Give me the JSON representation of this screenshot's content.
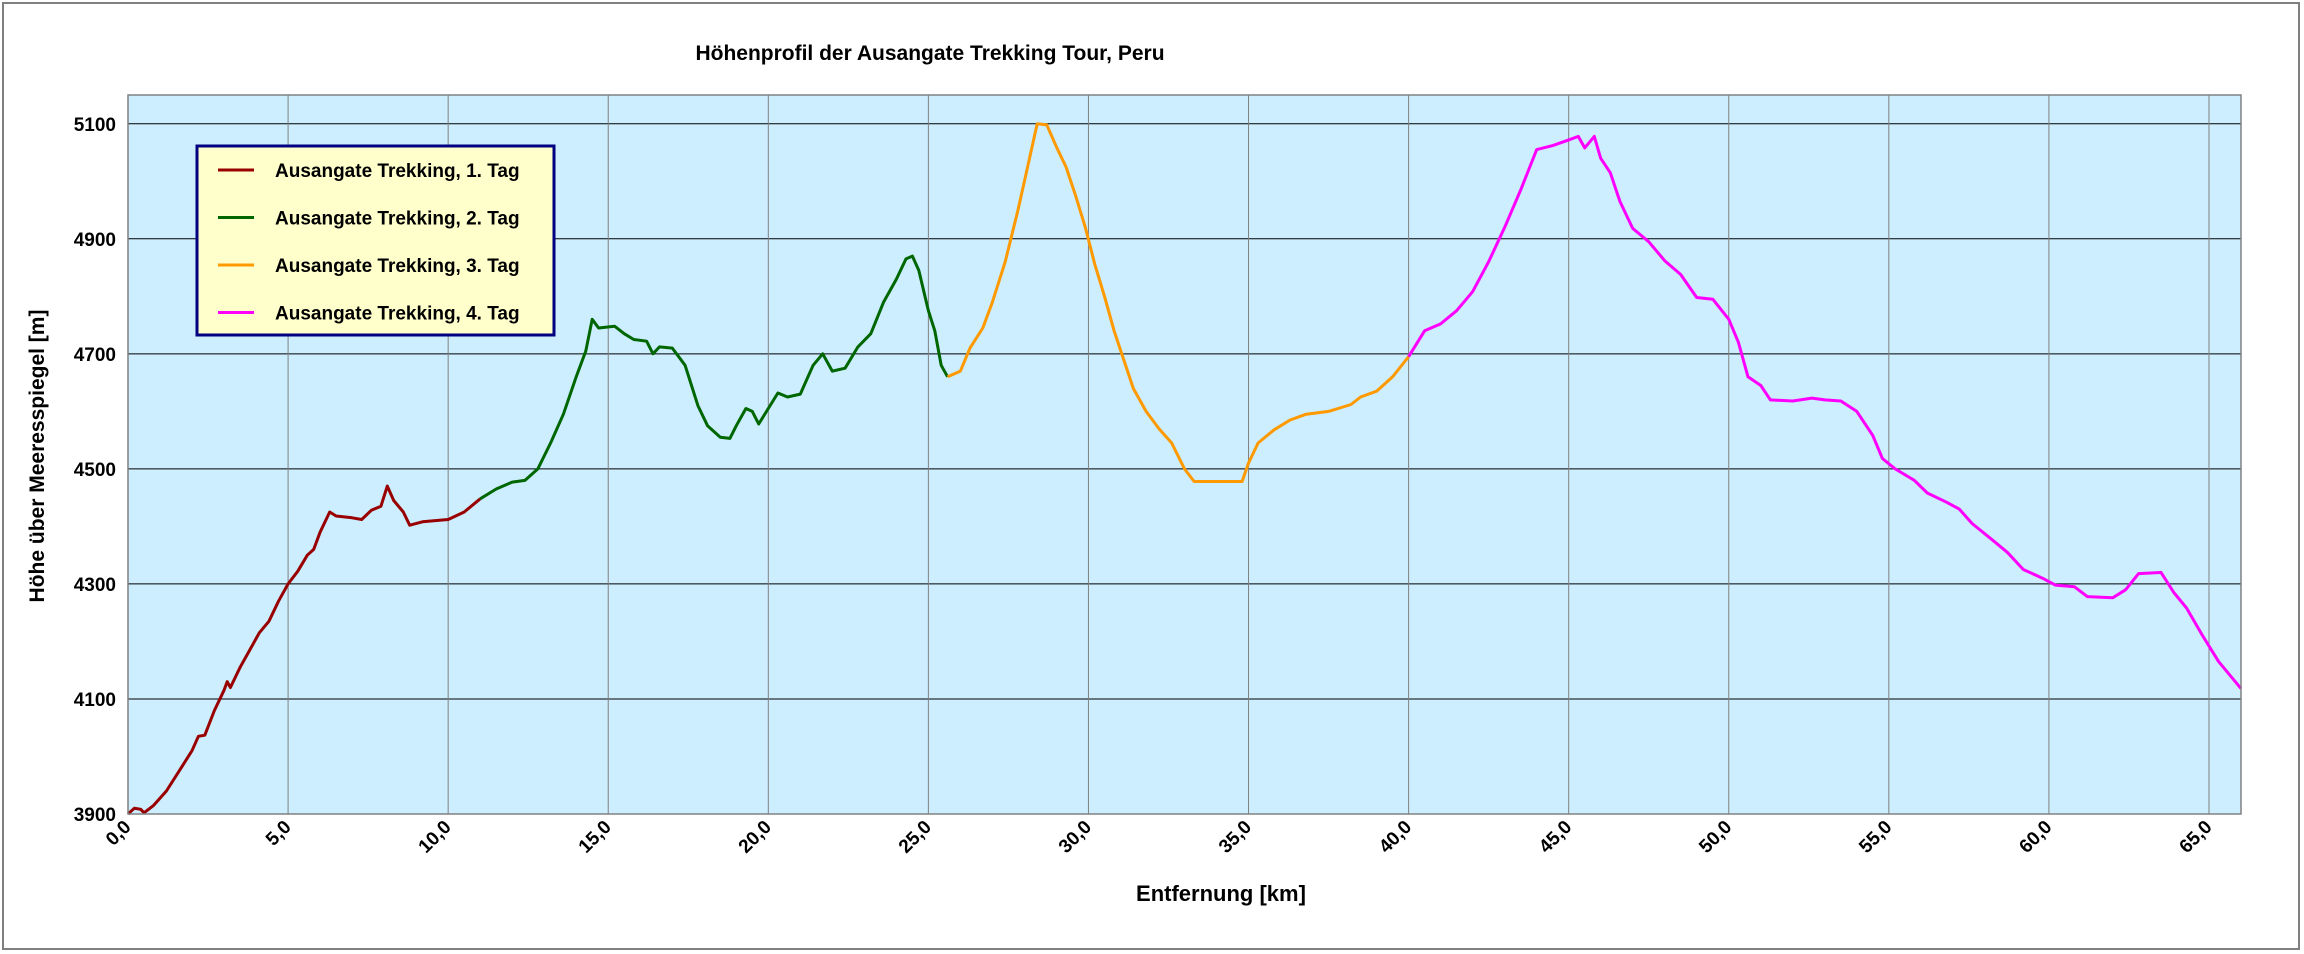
{
  "chart_data": {
    "type": "line",
    "title": "Höhenprofil der Ausangate Trekking Tour, Peru",
    "xlabel": "Entfernung [km]",
    "ylabel": "Höhe über Meeresspiegel [m]",
    "xlim": [
      0,
      66
    ],
    "ylim": [
      3900,
      5150
    ],
    "x_ticks": [
      0,
      5,
      10,
      15,
      20,
      25,
      30,
      35,
      40,
      45,
      50,
      55,
      60,
      65
    ],
    "x_tick_labels": [
      "0,0",
      "5,0",
      "10,0",
      "15,0",
      "20,0",
      "25,0",
      "30,0",
      "35,0",
      "40,0",
      "45,0",
      "50,0",
      "55,0",
      "60,0",
      "65,0"
    ],
    "y_ticks": [
      3900,
      4100,
      4300,
      4500,
      4700,
      4900,
      5100
    ],
    "y_tick_labels": [
      "3900",
      "4100",
      "4300",
      "4500",
      "4700",
      "4900",
      "5100"
    ],
    "grid": true,
    "plot_background": "#cceeff",
    "legend_position": "top-left",
    "series": [
      {
        "name": "Ausangate Trekking, 1. Tag",
        "color": "#990000",
        "points": [
          [
            0,
            3900
          ],
          [
            0.2,
            3910
          ],
          [
            0.4,
            3908
          ],
          [
            0.5,
            3902
          ],
          [
            0.8,
            3915
          ],
          [
            1.2,
            3940
          ],
          [
            1.6,
            3975
          ],
          [
            2.0,
            4010
          ],
          [
            2.2,
            4035
          ],
          [
            2.4,
            4037
          ],
          [
            2.7,
            4080
          ],
          [
            3.0,
            4115
          ],
          [
            3.1,
            4130
          ],
          [
            3.2,
            4120
          ],
          [
            3.5,
            4155
          ],
          [
            3.8,
            4185
          ],
          [
            4.1,
            4215
          ],
          [
            4.4,
            4235
          ],
          [
            4.7,
            4270
          ],
          [
            5.0,
            4300
          ],
          [
            5.3,
            4322
          ],
          [
            5.6,
            4350
          ],
          [
            5.8,
            4360
          ],
          [
            6.0,
            4390
          ],
          [
            6.3,
            4425
          ],
          [
            6.5,
            4418
          ],
          [
            7.0,
            4415
          ],
          [
            7.3,
            4412
          ],
          [
            7.6,
            4428
          ],
          [
            7.9,
            4435
          ],
          [
            8.1,
            4470
          ],
          [
            8.3,
            4445
          ],
          [
            8.6,
            4425
          ],
          [
            8.8,
            4402
          ],
          [
            9.2,
            4408
          ],
          [
            9.6,
            4410
          ],
          [
            10.0,
            4412
          ],
          [
            10.5,
            4425
          ],
          [
            11.0,
            4448
          ]
        ]
      },
      {
        "name": "Ausangate Trekking, 2. Tag",
        "color": "#006600",
        "points": [
          [
            11.0,
            4448
          ],
          [
            11.5,
            4465
          ],
          [
            12.0,
            4477
          ],
          [
            12.4,
            4480
          ],
          [
            12.8,
            4500
          ],
          [
            13.2,
            4545
          ],
          [
            13.6,
            4595
          ],
          [
            14.0,
            4660
          ],
          [
            14.3,
            4705
          ],
          [
            14.5,
            4760
          ],
          [
            14.7,
            4745
          ],
          [
            15.2,
            4748
          ],
          [
            15.5,
            4735
          ],
          [
            15.8,
            4725
          ],
          [
            16.2,
            4722
          ],
          [
            16.4,
            4700
          ],
          [
            16.6,
            4712
          ],
          [
            17.0,
            4710
          ],
          [
            17.4,
            4680
          ],
          [
            17.8,
            4610
          ],
          [
            18.1,
            4575
          ],
          [
            18.5,
            4555
          ],
          [
            18.8,
            4553
          ],
          [
            19.0,
            4575
          ],
          [
            19.3,
            4605
          ],
          [
            19.5,
            4600
          ],
          [
            19.7,
            4578
          ],
          [
            20.0,
            4605
          ],
          [
            20.3,
            4632
          ],
          [
            20.6,
            4625
          ],
          [
            21.0,
            4630
          ],
          [
            21.4,
            4680
          ],
          [
            21.7,
            4700
          ],
          [
            22.0,
            4670
          ],
          [
            22.4,
            4675
          ],
          [
            22.8,
            4712
          ],
          [
            23.2,
            4735
          ],
          [
            23.6,
            4790
          ],
          [
            24.0,
            4830
          ],
          [
            24.3,
            4865
          ],
          [
            24.5,
            4870
          ],
          [
            24.7,
            4845
          ],
          [
            25.0,
            4775
          ],
          [
            25.2,
            4740
          ],
          [
            25.4,
            4680
          ],
          [
            25.6,
            4660
          ]
        ]
      },
      {
        "name": "Ausangate Trekking, 3. Tag",
        "color": "#ff9900",
        "points": [
          [
            25.6,
            4660
          ],
          [
            26.0,
            4670
          ],
          [
            26.3,
            4710
          ],
          [
            26.7,
            4745
          ],
          [
            27.0,
            4790
          ],
          [
            27.4,
            4860
          ],
          [
            27.8,
            4950
          ],
          [
            28.1,
            5025
          ],
          [
            28.4,
            5100
          ],
          [
            28.7,
            5098
          ],
          [
            29.0,
            5060
          ],
          [
            29.3,
            5025
          ],
          [
            29.6,
            4975
          ],
          [
            29.9,
            4920
          ],
          [
            30.2,
            4855
          ],
          [
            30.5,
            4800
          ],
          [
            30.8,
            4740
          ],
          [
            31.1,
            4690
          ],
          [
            31.4,
            4640
          ],
          [
            31.8,
            4600
          ],
          [
            32.2,
            4570
          ],
          [
            32.6,
            4545
          ],
          [
            33.0,
            4500
          ],
          [
            33.3,
            4478
          ],
          [
            34.0,
            4478
          ],
          [
            34.8,
            4478
          ],
          [
            35.0,
            4510
          ],
          [
            35.3,
            4545
          ],
          [
            35.8,
            4568
          ],
          [
            36.3,
            4585
          ],
          [
            36.8,
            4595
          ],
          [
            37.5,
            4600
          ],
          [
            38.2,
            4612
          ],
          [
            38.5,
            4625
          ],
          [
            39.0,
            4635
          ],
          [
            39.5,
            4660
          ],
          [
            40.0,
            4695
          ]
        ]
      },
      {
        "name": "Ausangate Trekking, 4. Tag",
        "color": "#ff00ff",
        "points": [
          [
            40.0,
            4695
          ],
          [
            40.5,
            4740
          ],
          [
            41.0,
            4752
          ],
          [
            41.5,
            4775
          ],
          [
            42.0,
            4808
          ],
          [
            42.5,
            4860
          ],
          [
            43.0,
            4920
          ],
          [
            43.5,
            4985
          ],
          [
            44.0,
            5055
          ],
          [
            44.5,
            5062
          ],
          [
            45.0,
            5072
          ],
          [
            45.3,
            5078
          ],
          [
            45.5,
            5058
          ],
          [
            45.8,
            5078
          ],
          [
            46.0,
            5040
          ],
          [
            46.3,
            5015
          ],
          [
            46.6,
            4965
          ],
          [
            47.0,
            4918
          ],
          [
            47.5,
            4895
          ],
          [
            48.0,
            4862
          ],
          [
            48.5,
            4838
          ],
          [
            49.0,
            4798
          ],
          [
            49.5,
            4795
          ],
          [
            50.0,
            4760
          ],
          [
            50.3,
            4720
          ],
          [
            50.6,
            4660
          ],
          [
            51.0,
            4645
          ],
          [
            51.3,
            4620
          ],
          [
            52.0,
            4618
          ],
          [
            52.6,
            4623
          ],
          [
            53.0,
            4620
          ],
          [
            53.5,
            4618
          ],
          [
            54.0,
            4600
          ],
          [
            54.5,
            4558
          ],
          [
            54.8,
            4518
          ],
          [
            55.2,
            4500
          ],
          [
            55.8,
            4480
          ],
          [
            56.2,
            4458
          ],
          [
            56.8,
            4442
          ],
          [
            57.2,
            4430
          ],
          [
            57.6,
            4405
          ],
          [
            58.2,
            4378
          ],
          [
            58.7,
            4355
          ],
          [
            59.2,
            4325
          ],
          [
            59.8,
            4310
          ],
          [
            60.2,
            4298
          ],
          [
            60.8,
            4295
          ],
          [
            61.2,
            4278
          ],
          [
            62.0,
            4276
          ],
          [
            62.4,
            4290
          ],
          [
            62.8,
            4318
          ],
          [
            63.5,
            4320
          ],
          [
            63.9,
            4285
          ],
          [
            64.3,
            4258
          ],
          [
            64.8,
            4210
          ],
          [
            65.3,
            4165
          ],
          [
            66.0,
            4118
          ]
        ]
      }
    ]
  }
}
